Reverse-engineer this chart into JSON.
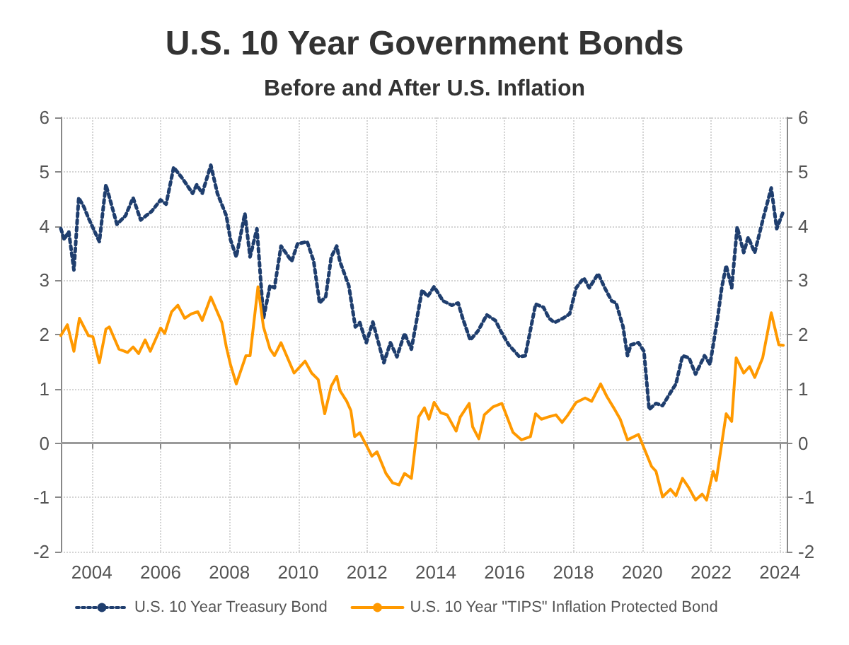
{
  "chart_data": {
    "type": "line",
    "title": "U.S. 10 Year Government Bonds",
    "subtitle": "Before and After U.S. Inflation",
    "xlim": [
      2003.1,
      2024.2
    ],
    "xticks": [
      2004,
      2006,
      2008,
      2010,
      2012,
      2014,
      2016,
      2018,
      2020,
      2022,
      2024
    ],
    "ylim": [
      -2,
      6
    ],
    "yticks": [
      -2,
      -1,
      0,
      1,
      2,
      3,
      4,
      5,
      6
    ],
    "y2lim": [
      -2,
      6
    ],
    "y2ticks": [
      -2,
      -1,
      0,
      1,
      2,
      3,
      4,
      5,
      6
    ],
    "grid": true,
    "legend": "bottom left",
    "marker": "none",
    "ref_lines": [
      {
        "axis": "y",
        "value": 0,
        "color": "#9a9a9a",
        "line_style": "solid"
      }
    ],
    "series": [
      {
        "name": "U.S. 10 Year Treasury Bond",
        "color": "#1f3e6e",
        "line_style": "dotted",
        "x": [
          2003.1,
          2003.2,
          2003.33,
          2003.48,
          2003.62,
          2003.77,
          2003.9,
          2004.22,
          2004.41,
          2004.73,
          2004.98,
          2005.2,
          2005.42,
          2005.74,
          2006.0,
          2006.16,
          2006.38,
          2006.63,
          2006.93,
          2007.05,
          2007.21,
          2007.46,
          2007.65,
          2007.91,
          2008.03,
          2008.2,
          2008.45,
          2008.6,
          2008.8,
          2008.99,
          2009.18,
          2009.31,
          2009.5,
          2009.81,
          2009.98,
          2010.26,
          2010.45,
          2010.62,
          2010.8,
          2010.96,
          2011.12,
          2011.21,
          2011.47,
          2011.66,
          2011.79,
          2011.98,
          2012.17,
          2012.49,
          2012.68,
          2012.87,
          2013.09,
          2013.29,
          2013.6,
          2013.76,
          2013.95,
          2014.21,
          2014.46,
          2014.65,
          2014.78,
          2015.0,
          2015.22,
          2015.48,
          2015.73,
          2015.89,
          2016.12,
          2016.43,
          2016.6,
          2016.9,
          2017.13,
          2017.29,
          2017.45,
          2017.7,
          2017.89,
          2018.08,
          2018.3,
          2018.46,
          2018.72,
          2018.91,
          2019.11,
          2019.24,
          2019.44,
          2019.57,
          2019.67,
          2019.89,
          2020.05,
          2020.2,
          2020.4,
          2020.59,
          2020.82,
          2020.98,
          2021.17,
          2021.36,
          2021.55,
          2021.81,
          2021.97,
          2022.19,
          2022.31,
          2022.44,
          2022.6,
          2022.76,
          2022.95,
          2023.08,
          2023.27,
          2023.52,
          2023.75,
          2023.91,
          2024.1
        ],
        "values": [
          3.95,
          3.75,
          3.9,
          3.19,
          4.52,
          4.35,
          4.15,
          3.71,
          4.76,
          4.03,
          4.19,
          4.52,
          4.11,
          4.27,
          4.48,
          4.4,
          5.08,
          4.88,
          4.6,
          4.76,
          4.6,
          5.12,
          4.6,
          4.19,
          3.75,
          3.43,
          4.23,
          3.43,
          3.95,
          2.3,
          2.9,
          2.86,
          3.63,
          3.35,
          3.67,
          3.71,
          3.35,
          2.58,
          2.7,
          3.43,
          3.63,
          3.35,
          2.9,
          2.14,
          2.22,
          1.85,
          2.23,
          1.48,
          1.85,
          1.59,
          2.02,
          1.73,
          2.82,
          2.7,
          2.88,
          2.62,
          2.54,
          2.58,
          2.3,
          1.9,
          2.06,
          2.36,
          2.26,
          2.06,
          1.81,
          1.59,
          1.61,
          2.56,
          2.5,
          2.3,
          2.22,
          2.3,
          2.38,
          2.86,
          3.04,
          2.86,
          3.12,
          2.86,
          2.62,
          2.58,
          2.15,
          1.61,
          1.81,
          1.85,
          1.69,
          0.62,
          0.73,
          0.69,
          0.93,
          1.09,
          1.61,
          1.57,
          1.27,
          1.61,
          1.45,
          2.3,
          2.86,
          3.27,
          2.86,
          3.98,
          3.51,
          3.79,
          3.51,
          4.15,
          4.7,
          3.95,
          4.27
        ]
      },
      {
        "name": "U.S. 10 Year \"TIPS\" Inflation Protected Bond",
        "color": "#ff9900",
        "line_style": "solid",
        "x": [
          2003.1,
          2003.29,
          2003.48,
          2003.64,
          2003.9,
          2004.03,
          2004.22,
          2004.41,
          2004.51,
          2004.79,
          2005.04,
          2005.2,
          2005.36,
          2005.55,
          2005.7,
          2006.0,
          2006.12,
          2006.32,
          2006.5,
          2006.7,
          2006.89,
          2007.08,
          2007.21,
          2007.46,
          2007.78,
          2007.91,
          2008.03,
          2008.2,
          2008.48,
          2008.6,
          2008.83,
          2008.99,
          2009.18,
          2009.31,
          2009.5,
          2009.88,
          2010.2,
          2010.39,
          2010.58,
          2010.77,
          2010.96,
          2011.12,
          2011.21,
          2011.41,
          2011.53,
          2011.64,
          2011.79,
          2011.98,
          2012.14,
          2012.29,
          2012.55,
          2012.74,
          2012.93,
          2013.09,
          2013.29,
          2013.5,
          2013.67,
          2013.8,
          2013.95,
          2014.14,
          2014.33,
          2014.59,
          2014.71,
          2014.97,
          2015.07,
          2015.25,
          2015.41,
          2015.67,
          2015.92,
          2016.24,
          2016.49,
          2016.75,
          2016.9,
          2017.07,
          2017.26,
          2017.49,
          2017.67,
          2017.83,
          2018.08,
          2018.34,
          2018.53,
          2018.79,
          2018.97,
          2019.17,
          2019.36,
          2019.57,
          2019.89,
          2020.07,
          2020.27,
          2020.4,
          2020.59,
          2020.82,
          2020.98,
          2021.17,
          2021.36,
          2021.55,
          2021.74,
          2021.87,
          2022.06,
          2022.15,
          2022.44,
          2022.6,
          2022.73,
          2022.95,
          2023.12,
          2023.27,
          2023.5,
          2023.75,
          2023.97,
          2024.1
        ],
        "values": [
          1.98,
          2.18,
          1.69,
          2.3,
          1.98,
          1.96,
          1.48,
          2.1,
          2.14,
          1.73,
          1.67,
          1.77,
          1.65,
          1.9,
          1.69,
          2.12,
          2.02,
          2.42,
          2.54,
          2.3,
          2.38,
          2.42,
          2.26,
          2.69,
          2.22,
          1.77,
          1.45,
          1.09,
          1.61,
          1.61,
          2.88,
          2.14,
          1.73,
          1.61,
          1.85,
          1.29,
          1.51,
          1.29,
          1.17,
          0.54,
          1.05,
          1.23,
          0.97,
          0.77,
          0.6,
          0.12,
          0.19,
          -0.04,
          -0.24,
          -0.16,
          -0.56,
          -0.73,
          -0.77,
          -0.56,
          -0.65,
          0.48,
          0.65,
          0.44,
          0.75,
          0.56,
          0.52,
          0.22,
          0.48,
          0.73,
          0.3,
          0.08,
          0.52,
          0.67,
          0.73,
          0.2,
          0.06,
          0.12,
          0.54,
          0.44,
          0.48,
          0.52,
          0.38,
          0.51,
          0.75,
          0.83,
          0.77,
          1.09,
          0.86,
          0.65,
          0.44,
          0.06,
          0.16,
          -0.12,
          -0.43,
          -0.52,
          -0.99,
          -0.85,
          -0.97,
          -0.65,
          -0.83,
          -1.05,
          -0.94,
          -1.05,
          -0.52,
          -0.69,
          0.54,
          0.4,
          1.57,
          1.29,
          1.41,
          1.21,
          1.57,
          2.4,
          1.81,
          1.8
        ]
      }
    ]
  }
}
